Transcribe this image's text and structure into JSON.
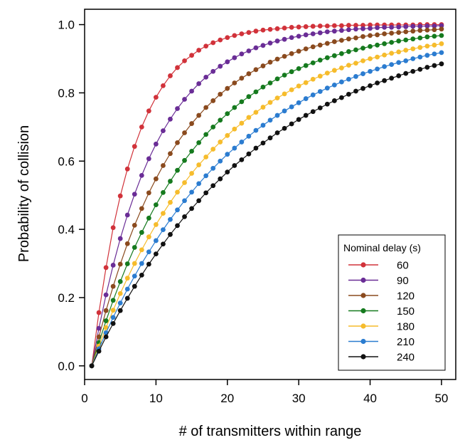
{
  "chart_data": {
    "type": "line",
    "title": "",
    "xlabel": "# of transmitters within range",
    "ylabel": "Probability of collision",
    "xlim": [
      0,
      52
    ],
    "ylim": [
      -0.04,
      1.045
    ],
    "xticks": [
      0,
      10,
      20,
      30,
      40,
      50
    ],
    "yticks": [
      0.0,
      0.2,
      0.4,
      0.6,
      0.8,
      1.0
    ],
    "x": [
      1,
      2,
      3,
      4,
      5,
      6,
      7,
      8,
      9,
      10,
      11,
      12,
      13,
      14,
      15,
      16,
      17,
      18,
      19,
      20,
      21,
      22,
      23,
      24,
      25,
      26,
      27,
      28,
      29,
      30,
      31,
      32,
      33,
      34,
      35,
      36,
      37,
      38,
      39,
      40,
      41,
      42,
      43,
      44,
      45,
      46,
      47,
      48,
      49,
      50
    ],
    "grid": false,
    "markers": true,
    "legend": {
      "title": "Nominal delay (s)",
      "position": "bottom-right"
    },
    "series": [
      {
        "name": "60",
        "color": "#d1323a",
        "values": [
          0.0,
          0.156,
          0.288,
          0.405,
          0.498,
          0.577,
          0.643,
          0.7,
          0.747,
          0.787,
          0.821,
          0.85,
          0.874,
          0.894,
          0.91,
          0.925,
          0.937,
          0.947,
          0.955,
          0.962,
          0.968,
          0.973,
          0.977,
          0.981,
          0.984,
          0.986,
          0.988,
          0.99,
          0.992,
          0.993,
          0.994,
          0.995,
          0.996,
          0.996,
          0.997,
          0.997,
          0.998,
          0.998,
          0.998,
          0.999,
          0.999,
          0.999,
          0.999,
          0.999,
          0.999,
          0.999,
          1.0,
          1.0,
          1.0,
          1.0
        ]
      },
      {
        "name": "90",
        "color": "#6a2d96",
        "values": [
          0.0,
          0.11,
          0.208,
          0.295,
          0.373,
          0.442,
          0.503,
          0.558,
          0.607,
          0.65,
          0.689,
          0.723,
          0.754,
          0.781,
          0.805,
          0.827,
          0.846,
          0.863,
          0.878,
          0.891,
          0.903,
          0.914,
          0.923,
          0.932,
          0.939,
          0.946,
          0.952,
          0.957,
          0.962,
          0.966,
          0.97,
          0.973,
          0.976,
          0.979,
          0.981,
          0.983,
          0.985,
          0.987,
          0.988,
          0.989,
          0.991,
          0.992,
          0.992,
          0.993,
          0.994,
          0.995,
          0.995,
          0.996,
          0.996,
          0.997
        ]
      },
      {
        "name": "120",
        "color": "#8a4a1e",
        "values": [
          0.0,
          0.085,
          0.162,
          0.233,
          0.298,
          0.358,
          0.412,
          0.461,
          0.507,
          0.548,
          0.587,
          0.622,
          0.654,
          0.683,
          0.71,
          0.734,
          0.757,
          0.777,
          0.796,
          0.813,
          0.829,
          0.843,
          0.856,
          0.868,
          0.879,
          0.89,
          0.899,
          0.907,
          0.915,
          0.922,
          0.929,
          0.935,
          0.94,
          0.945,
          0.95,
          0.954,
          0.958,
          0.961,
          0.965,
          0.968,
          0.97,
          0.973,
          0.975,
          0.977,
          0.979,
          0.981,
          0.983,
          0.984,
          0.985,
          0.987
        ]
      },
      {
        "name": "150",
        "color": "#157a1e",
        "values": [
          0.0,
          0.068,
          0.132,
          0.192,
          0.247,
          0.299,
          0.347,
          0.391,
          0.433,
          0.472,
          0.508,
          0.541,
          0.573,
          0.602,
          0.629,
          0.654,
          0.678,
          0.7,
          0.72,
          0.739,
          0.757,
          0.774,
          0.789,
          0.803,
          0.817,
          0.829,
          0.841,
          0.852,
          0.862,
          0.871,
          0.88,
          0.888,
          0.896,
          0.903,
          0.909,
          0.915,
          0.921,
          0.926,
          0.931,
          0.936,
          0.94,
          0.944,
          0.948,
          0.952,
          0.955,
          0.958,
          0.961,
          0.964,
          0.966,
          0.968
        ]
      },
      {
        "name": "180",
        "color": "#f6bc2c",
        "values": [
          0.0,
          0.058,
          0.112,
          0.163,
          0.212,
          0.257,
          0.3,
          0.34,
          0.378,
          0.414,
          0.447,
          0.479,
          0.509,
          0.537,
          0.564,
          0.589,
          0.612,
          0.635,
          0.656,
          0.675,
          0.694,
          0.711,
          0.728,
          0.743,
          0.758,
          0.772,
          0.785,
          0.797,
          0.809,
          0.82,
          0.83,
          0.84,
          0.849,
          0.858,
          0.866,
          0.873,
          0.881,
          0.887,
          0.894,
          0.9,
          0.905,
          0.911,
          0.916,
          0.92,
          0.925,
          0.929,
          0.933,
          0.937,
          0.94,
          0.944
        ]
      },
      {
        "name": "210",
        "color": "#2b7cd0",
        "values": [
          0.0,
          0.05,
          0.097,
          0.142,
          0.184,
          0.225,
          0.263,
          0.3,
          0.334,
          0.367,
          0.399,
          0.429,
          0.457,
          0.484,
          0.509,
          0.534,
          0.557,
          0.579,
          0.6,
          0.62,
          0.638,
          0.656,
          0.673,
          0.69,
          0.705,
          0.72,
          0.734,
          0.747,
          0.759,
          0.771,
          0.783,
          0.794,
          0.804,
          0.814,
          0.823,
          0.832,
          0.84,
          0.848,
          0.856,
          0.863,
          0.87,
          0.877,
          0.883,
          0.889,
          0.894,
          0.9,
          0.905,
          0.91,
          0.914,
          0.918
        ]
      },
      {
        "name": "240",
        "color": "#111111",
        "values": [
          0.0,
          0.043,
          0.085,
          0.124,
          0.162,
          0.198,
          0.233,
          0.266,
          0.298,
          0.328,
          0.357,
          0.385,
          0.411,
          0.437,
          0.461,
          0.484,
          0.507,
          0.528,
          0.548,
          0.568,
          0.587,
          0.604,
          0.621,
          0.638,
          0.653,
          0.668,
          0.683,
          0.696,
          0.709,
          0.722,
          0.734,
          0.745,
          0.756,
          0.767,
          0.777,
          0.786,
          0.796,
          0.805,
          0.813,
          0.821,
          0.829,
          0.836,
          0.843,
          0.85,
          0.857,
          0.863,
          0.869,
          0.875,
          0.88,
          0.885
        ]
      }
    ]
  }
}
